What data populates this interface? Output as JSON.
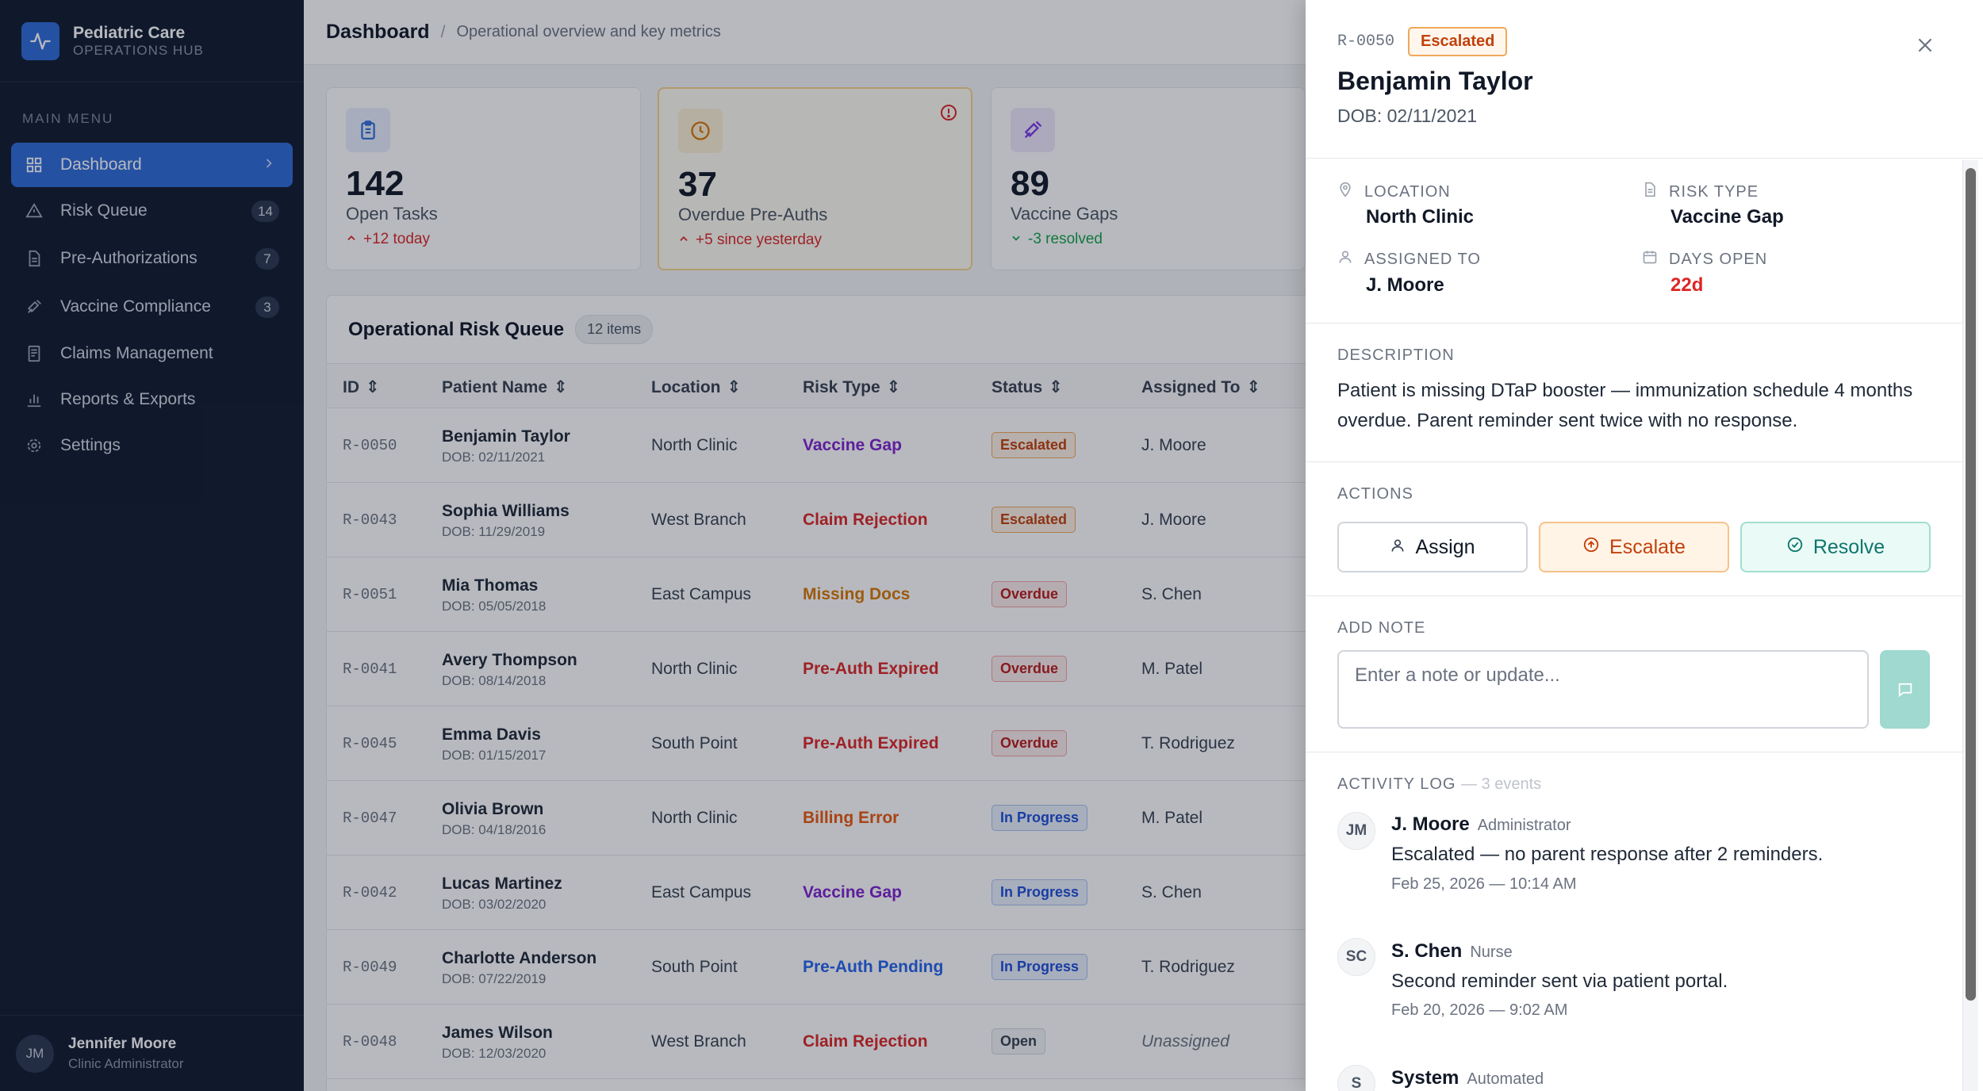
{
  "app": {
    "name": "Pediatric Care",
    "subtitle": "OPERATIONS HUB"
  },
  "sidebar": {
    "section_label": "MAIN MENU",
    "items": [
      {
        "label": "Dashboard",
        "icon": "grid-icon",
        "active": true
      },
      {
        "label": "Risk Queue",
        "icon": "warning-icon",
        "badge": "14"
      },
      {
        "label": "Pre-Authorizations",
        "icon": "document-icon",
        "badge": "7"
      },
      {
        "label": "Vaccine Compliance",
        "icon": "syringe-icon",
        "badge": "3"
      },
      {
        "label": "Claims Management",
        "icon": "receipt-icon"
      },
      {
        "label": "Reports & Exports",
        "icon": "bar-chart-icon"
      },
      {
        "label": "Settings",
        "icon": "gear-icon"
      }
    ],
    "user": {
      "initials": "JM",
      "name": "Jennifer Moore",
      "role": "Clinic Administrator"
    }
  },
  "header": {
    "title": "Dashboard",
    "separator": "/",
    "subtitle": "Operational overview and key metrics"
  },
  "stats": [
    {
      "value": "142",
      "label": "Open Tasks",
      "delta": "+12 today",
      "direction": "up",
      "delta_color": "#dc2626",
      "icon": "clipboard-icon",
      "icon_color": "#2f6bd8",
      "icon_bg": "#e8eefc"
    },
    {
      "value": "37",
      "label": "Overdue Pre-Auths",
      "delta": "+5 since yesterday",
      "direction": "up",
      "delta_color": "#dc2626",
      "icon": "clock-icon",
      "icon_color": "#d97706",
      "icon_bg": "#fdf1d6"
    },
    {
      "value": "89",
      "label": "Vaccine Gaps",
      "delta": "-3 resolved",
      "direction": "down",
      "delta_color": "#16a34a",
      "icon": "syringe-icon",
      "icon_color": "#7c3aed",
      "icon_bg": "#efe9fd"
    }
  ],
  "queue": {
    "title": "Operational Risk Queue",
    "count": "12 items",
    "columns": [
      "ID",
      "Patient Name",
      "Location",
      "Risk Type",
      "Status",
      "Assigned To"
    ],
    "rows": [
      {
        "id": "R-0050",
        "name": "Benjamin Taylor",
        "dob": "DOB: 02/11/2021",
        "location": "North Clinic",
        "risk": "Vaccine Gap",
        "risk_color": "#7e22ce",
        "status": "Escalated",
        "status_kind": "escalated",
        "assigned": "J. Moore"
      },
      {
        "id": "R-0043",
        "name": "Sophia Williams",
        "dob": "DOB: 11/29/2019",
        "location": "West Branch",
        "risk": "Claim Rejection",
        "risk_color": "#dc2626",
        "status": "Escalated",
        "status_kind": "escalated",
        "assigned": "J. Moore"
      },
      {
        "id": "R-0051",
        "name": "Mia Thomas",
        "dob": "DOB: 05/05/2018",
        "location": "East Campus",
        "risk": "Missing Docs",
        "risk_color": "#d97706",
        "status": "Overdue",
        "status_kind": "overdue",
        "assigned": "S. Chen"
      },
      {
        "id": "R-0041",
        "name": "Avery Thompson",
        "dob": "DOB: 08/14/2018",
        "location": "North Clinic",
        "risk": "Pre-Auth Expired",
        "risk_color": "#dc2626",
        "status": "Overdue",
        "status_kind": "overdue",
        "assigned": "M. Patel"
      },
      {
        "id": "R-0045",
        "name": "Emma Davis",
        "dob": "DOB: 01/15/2017",
        "location": "South Point",
        "risk": "Pre-Auth Expired",
        "risk_color": "#dc2626",
        "status": "Overdue",
        "status_kind": "overdue",
        "assigned": "T. Rodriguez"
      },
      {
        "id": "R-0047",
        "name": "Olivia Brown",
        "dob": "DOB: 04/18/2016",
        "location": "North Clinic",
        "risk": "Billing Error",
        "risk_color": "#ea580c",
        "status": "In Progress",
        "status_kind": "progress",
        "assigned": "M. Patel"
      },
      {
        "id": "R-0042",
        "name": "Lucas Martinez",
        "dob": "DOB: 03/02/2020",
        "location": "East Campus",
        "risk": "Vaccine Gap",
        "risk_color": "#7e22ce",
        "status": "In Progress",
        "status_kind": "progress",
        "assigned": "S. Chen"
      },
      {
        "id": "R-0049",
        "name": "Charlotte Anderson",
        "dob": "DOB: 07/22/2019",
        "location": "South Point",
        "risk": "Pre-Auth Pending",
        "risk_color": "#2563eb",
        "status": "In Progress",
        "status_kind": "progress",
        "assigned": "T. Rodriguez"
      },
      {
        "id": "R-0048",
        "name": "James Wilson",
        "dob": "DOB: 12/03/2020",
        "location": "West Branch",
        "risk": "Claim Rejection",
        "risk_color": "#dc2626",
        "status": "Open",
        "status_kind": "open",
        "assigned": "Unassigned"
      }
    ]
  },
  "status_styles": {
    "escalated": {
      "color": "#c2410c",
      "bg": "#fff1e6",
      "border": "#f0a85b"
    },
    "overdue": {
      "color": "#b91c1c",
      "bg": "#fdecec",
      "border": "#f2a3a3"
    },
    "progress": {
      "color": "#1d4ed8",
      "bg": "#e8effd",
      "border": "#a9c0f3"
    },
    "open": {
      "color": "#374151",
      "bg": "#f3f4f6",
      "border": "#d1d5db"
    }
  },
  "detail": {
    "id": "R-0050",
    "status": "Escalated",
    "name": "Benjamin Taylor",
    "dob": "DOB: 02/11/2021",
    "location_label": "LOCATION",
    "location": "North Clinic",
    "risk_type_label": "RISK TYPE",
    "risk_type": "Vaccine Gap",
    "assigned_label": "ASSIGNED TO",
    "assigned": "J. Moore",
    "days_open_label": "DAYS OPEN",
    "days_open": "22d",
    "description_label": "DESCRIPTION",
    "description": "Patient is missing DTaP booster — immunization schedule 4 months overdue. Parent reminder sent twice with no response.",
    "actions_label": "ACTIONS",
    "actions": {
      "assign": "Assign",
      "escalate": "Escalate",
      "resolve": "Resolve"
    },
    "note_label": "ADD NOTE",
    "note_placeholder": "Enter a note or update...",
    "activity_label": "ACTIVITY LOG",
    "activity_count": "— 3 events",
    "activity": [
      {
        "initials": "JM",
        "author": "J. Moore",
        "role": "Administrator",
        "text": "Escalated — no parent response after 2 reminders.",
        "time": "Feb 25, 2026 — 10:14 AM"
      },
      {
        "initials": "SC",
        "author": "S. Chen",
        "role": "Nurse",
        "text": "Second reminder sent via patient portal.",
        "time": "Feb 20, 2026 — 9:02 AM"
      },
      {
        "initials": "S",
        "author": "System",
        "role": "Automated",
        "text": "",
        "time": ""
      }
    ]
  }
}
